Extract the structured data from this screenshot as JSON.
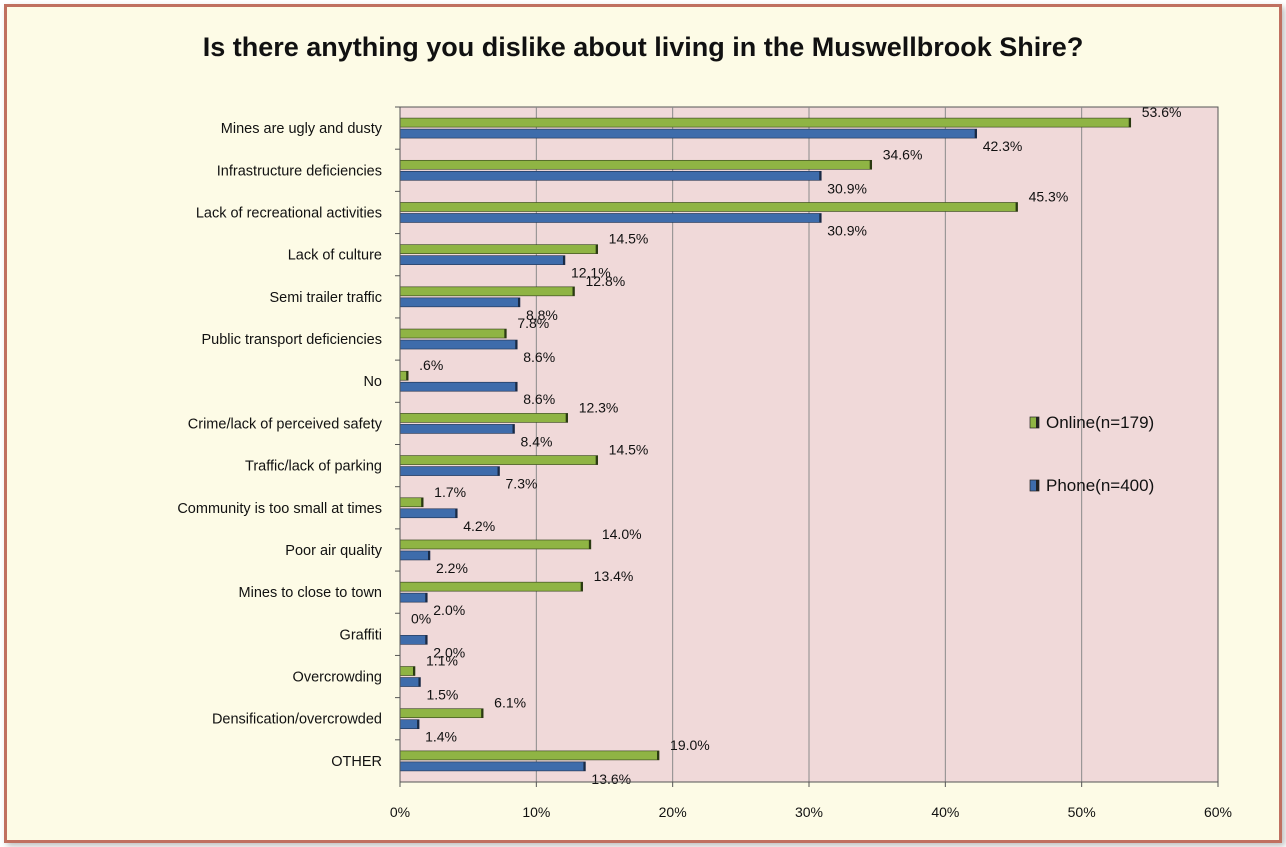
{
  "chart_data": {
    "type": "bar",
    "orientation": "horizontal",
    "title": "Is there anything you dislike about living in the Muswellbrook Shire?",
    "categories": [
      "Mines are ugly and dusty",
      "Infrastructure deficiencies",
      "Lack of recreational activities",
      "Lack of culture",
      "Semi trailer traffic",
      "Public transport deficiencies",
      "No",
      "Crime/lack of perceived safety",
      "Traffic/lack of parking",
      "Community is too small at times",
      "Poor air quality",
      "Mines to close to town",
      "Graffiti",
      "Overcrowding",
      "Densification/overcrowded",
      "OTHER"
    ],
    "series": [
      {
        "name": "Online(n=179)",
        "color": "#8fb444",
        "values": [
          53.6,
          34.6,
          45.3,
          14.5,
          12.8,
          7.8,
          0.6,
          12.3,
          14.5,
          1.7,
          14.0,
          13.4,
          0,
          1.1,
          6.1,
          19.0
        ],
        "labels": [
          "53.6%",
          "34.6%",
          "45.3%",
          "14.5%",
          "12.8%",
          "7.8%",
          ".6%",
          "12.3%",
          "14.5%",
          "1.7%",
          "14.0%",
          "13.4%",
          "0%",
          "1.1%",
          "6.1%",
          "19.0%"
        ]
      },
      {
        "name": "Phone(n=400)",
        "color": "#3e6cab",
        "values": [
          42.3,
          30.9,
          30.9,
          12.1,
          8.8,
          8.6,
          8.6,
          8.4,
          7.3,
          4.2,
          2.2,
          2.0,
          2.0,
          1.5,
          1.4,
          13.6
        ],
        "labels": [
          "42.3%",
          "30.9%",
          "30.9%",
          "12.1%",
          "8.8%",
          "8.6%",
          "8.6%",
          "8.4%",
          "7.3%",
          "4.2%",
          "2.2%",
          "2.0%",
          "2.0%",
          "1.5%",
          "1.4%",
          "13.6%"
        ]
      }
    ],
    "x_ticks": [
      "0%",
      "10%",
      "20%",
      "30%",
      "40%",
      "50%",
      "60%"
    ],
    "xlim": [
      0,
      60
    ],
    "grid": true,
    "legend_position": "right",
    "plot_background": "#f0d9d9"
  }
}
